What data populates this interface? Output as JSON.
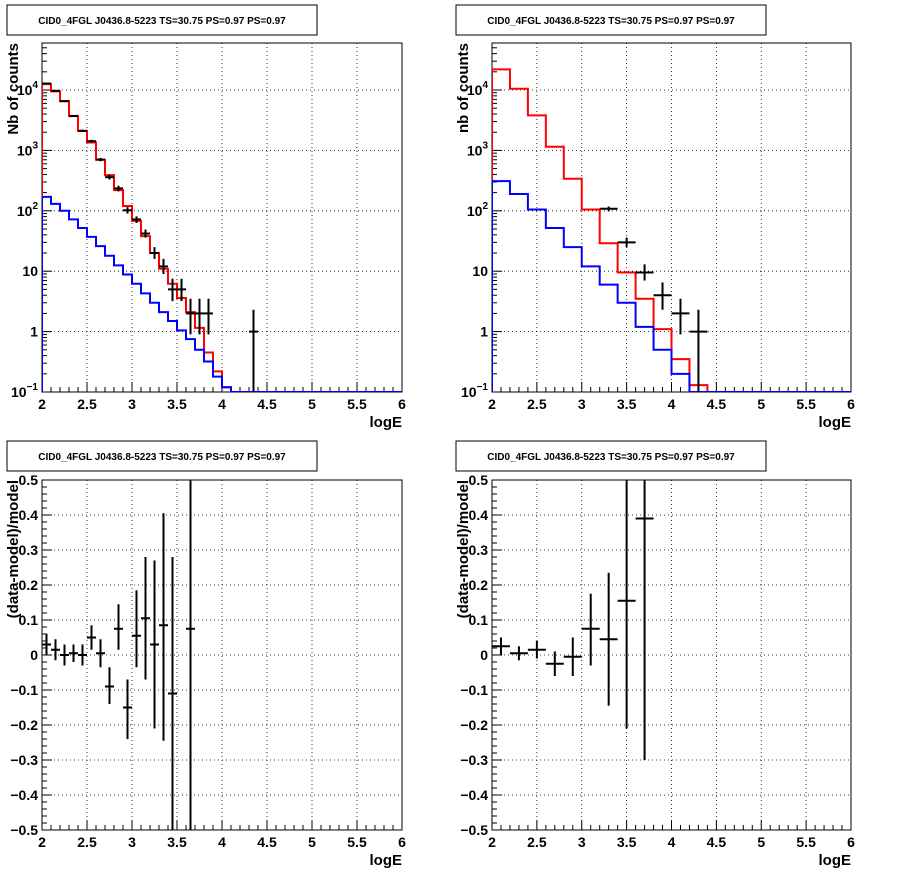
{
  "colors": {
    "data": "#000000",
    "total_model": "#ff0000",
    "component_model": "#0000ff",
    "grid": "#000000"
  },
  "chart_data": [
    {
      "type": "line",
      "title": "CID0_4FGL J0436.8-5223 TS=30.75 PS=0.97 PS=0.97",
      "xlabel": "logE",
      "ylabel": "Nb of counts",
      "xlim": [
        2,
        6
      ],
      "ylim": [
        0.1,
        60000
      ],
      "yscale": "log",
      "grid": true,
      "x_ticks": [
        "2",
        "2.5",
        "3",
        "3.5",
        "4",
        "4.5",
        "5",
        "5.5",
        "6"
      ],
      "y_ticks": [
        {
          "value": 0.1,
          "label": "10",
          "sup": "−1"
        },
        {
          "value": 1,
          "label": "1",
          "sup": ""
        },
        {
          "value": 10,
          "label": "10",
          "sup": ""
        },
        {
          "value": 100,
          "label": "10",
          "sup": "2"
        },
        {
          "value": 1000,
          "label": "10",
          "sup": "3"
        },
        {
          "value": 10000,
          "label": "10",
          "sup": "4"
        }
      ],
      "bin_edges": [
        2.0,
        2.1,
        2.2,
        2.3,
        2.4,
        2.5,
        2.6,
        2.7,
        2.8,
        2.9,
        3.0,
        3.1,
        3.2,
        3.3,
        3.4,
        3.5,
        3.6,
        3.7,
        3.8,
        3.9,
        4.0,
        4.1,
        4.2,
        4.3,
        4.4,
        4.5,
        4.6,
        4.7,
        4.8,
        4.9,
        5.0,
        5.1,
        5.2,
        5.3,
        5.4,
        5.5,
        5.6,
        5.7,
        5.8,
        5.9,
        6.0
      ],
      "series": [
        {
          "role": "total_model",
          "style": "step",
          "values": [
            12500,
            9500,
            6500,
            3700,
            2100,
            1350,
            700,
            390,
            220,
            120,
            68,
            38,
            20,
            11,
            6.2,
            3.6,
            2.1,
            1.15,
            0.45,
            0.22,
            0.12,
            0.1,
            0.1,
            0.1,
            0.1,
            0.1,
            0.1,
            0.1,
            0.1,
            0.1,
            0.1,
            0.1,
            0.1,
            0.1,
            0.1,
            0.1,
            0.1,
            0.1,
            0.1,
            0.1
          ]
        },
        {
          "role": "component_model",
          "style": "step",
          "values": [
            170,
            130,
            100,
            72,
            52,
            37,
            26,
            18,
            12.5,
            8.8,
            6.2,
            4.3,
            3.0,
            2.1,
            1.5,
            1.05,
            0.75,
            0.5,
            0.32,
            0.18,
            0.12,
            0.1,
            0.1,
            0.1,
            0.1,
            0.1,
            0.1,
            0.1,
            0.1,
            0.1,
            0.1,
            0.1,
            0.1,
            0.1,
            0.1,
            0.1,
            0.1,
            0.1,
            0.1,
            0.1
          ]
        },
        {
          "role": "data",
          "style": "errorbar",
          "points": [
            {
              "x": 2.05,
              "y": 12800,
              "lo": 12600,
              "hi": 13000
            },
            {
              "x": 2.15,
              "y": 9700,
              "lo": 9500,
              "hi": 9900
            },
            {
              "x": 2.25,
              "y": 6550,
              "lo": 6400,
              "hi": 6700
            },
            {
              "x": 2.35,
              "y": 3720,
              "lo": 3600,
              "hi": 3850
            },
            {
              "x": 2.45,
              "y": 2110,
              "lo": 2020,
              "hi": 2200
            },
            {
              "x": 2.55,
              "y": 1420,
              "lo": 1350,
              "hi": 1500
            },
            {
              "x": 2.65,
              "y": 705,
              "lo": 660,
              "hi": 750
            },
            {
              "x": 2.75,
              "y": 360,
              "lo": 330,
              "hi": 395
            },
            {
              "x": 2.85,
              "y": 235,
              "lo": 210,
              "hi": 260
            },
            {
              "x": 2.95,
              "y": 102,
              "lo": 90,
              "hi": 115
            },
            {
              "x": 3.05,
              "y": 72,
              "lo": 63,
              "hi": 81
            },
            {
              "x": 3.15,
              "y": 42,
              "lo": 36,
              "hi": 49
            },
            {
              "x": 3.25,
              "y": 20,
              "lo": 16,
              "hi": 25
            },
            {
              "x": 3.35,
              "y": 12,
              "lo": 9,
              "hi": 16
            },
            {
              "x": 3.45,
              "y": 5,
              "lo": 3.2,
              "hi": 7.5
            },
            {
              "x": 3.55,
              "y": 5,
              "lo": 3.2,
              "hi": 7.5
            },
            {
              "x": 3.65,
              "y": 2,
              "lo": 0.9,
              "hi": 3.5
            },
            {
              "x": 3.75,
              "y": 2,
              "lo": 0.9,
              "hi": 3.5
            },
            {
              "x": 3.85,
              "y": 2,
              "lo": 0.9,
              "hi": 3.5
            },
            {
              "x": 4.35,
              "y": 1,
              "lo": 0.1,
              "hi": 2.3
            }
          ]
        }
      ]
    },
    {
      "type": "line",
      "title": "CID0_4FGL J0436.8-5223 TS=30.75 PS=0.97 PS=0.97",
      "xlabel": "logE",
      "ylabel": "nb of counts",
      "xlim": [
        2,
        6
      ],
      "ylim": [
        0.1,
        60000
      ],
      "yscale": "log",
      "grid": true,
      "x_ticks": [
        "2",
        "2.5",
        "3",
        "3.5",
        "4",
        "4.5",
        "5",
        "5.5",
        "6"
      ],
      "y_ticks": [
        {
          "value": 0.1,
          "label": "10",
          "sup": "−1"
        },
        {
          "value": 1,
          "label": "1",
          "sup": ""
        },
        {
          "value": 10,
          "label": "10",
          "sup": ""
        },
        {
          "value": 100,
          "label": "10",
          "sup": "2"
        },
        {
          "value": 1000,
          "label": "10",
          "sup": "3"
        },
        {
          "value": 10000,
          "label": "10",
          "sup": "4"
        }
      ],
      "bin_edges": [
        2.0,
        2.2,
        2.4,
        2.6,
        2.8,
        3.0,
        3.2,
        3.4,
        3.6,
        3.8,
        4.0,
        4.2,
        4.4,
        4.6,
        4.8,
        5.0,
        5.2,
        5.4,
        5.6,
        5.8,
        6.0
      ],
      "series": [
        {
          "role": "total_model",
          "style": "step",
          "values": [
            22000,
            10500,
            3800,
            1150,
            340,
            105,
            29,
            9.5,
            3.5,
            1.1,
            0.35,
            0.13,
            0.1,
            0.1,
            0.1,
            0.1,
            0.1,
            0.1,
            0.1,
            0.1
          ]
        },
        {
          "role": "component_model",
          "style": "step",
          "values": [
            310,
            190,
            105,
            52,
            25,
            12,
            6,
            3,
            1.2,
            0.5,
            0.2,
            0.1,
            0.1,
            0.1,
            0.1,
            0.1,
            0.1,
            0.1,
            0.1,
            0.1
          ]
        },
        {
          "role": "data",
          "style": "errorbar",
          "points": [
            {
              "x": 3.3,
              "y": 108,
              "lo": 98,
              "hi": 118
            },
            {
              "x": 3.5,
              "y": 30,
              "lo": 25,
              "hi": 36
            },
            {
              "x": 3.7,
              "y": 9.5,
              "lo": 7,
              "hi": 13
            },
            {
              "x": 3.9,
              "y": 4,
              "lo": 2.3,
              "hi": 6.5
            },
            {
              "x": 4.1,
              "y": 2,
              "lo": 0.9,
              "hi": 3.5
            },
            {
              "x": 4.3,
              "y": 1,
              "lo": 0.1,
              "hi": 2.3
            }
          ]
        }
      ]
    },
    {
      "type": "scatter",
      "title": "CID0_4FGL J0436.8-5223 TS=30.75 PS=0.97 PS=0.97",
      "xlabel": "logE",
      "ylabel": "(data-model)/model",
      "xlim": [
        2,
        6
      ],
      "ylim": [
        -0.5,
        0.5
      ],
      "grid": true,
      "x_ticks": [
        "2",
        "2.5",
        "3",
        "3.5",
        "4",
        "4.5",
        "5",
        "5.5",
        "6"
      ],
      "y_ticks": [
        {
          "value": -0.5,
          "label": "−0.5",
          "sup": ""
        },
        {
          "value": -0.4,
          "label": "−0.4",
          "sup": ""
        },
        {
          "value": -0.3,
          "label": "−0.3",
          "sup": ""
        },
        {
          "value": -0.2,
          "label": "−0.2",
          "sup": ""
        },
        {
          "value": -0.1,
          "label": "−0.1",
          "sup": ""
        },
        {
          "value": 0,
          "label": "0",
          "sup": ""
        },
        {
          "value": 0.1,
          "label": "0.1",
          "sup": ""
        },
        {
          "value": 0.2,
          "label": "0.2",
          "sup": ""
        },
        {
          "value": 0.3,
          "label": "0.3",
          "sup": ""
        },
        {
          "value": 0.4,
          "label": "0.4",
          "sup": ""
        },
        {
          "value": 0.5,
          "label": "0.5",
          "sup": ""
        }
      ],
      "bin_width": 0.1,
      "series": [
        {
          "role": "data",
          "style": "errorbar",
          "points": [
            {
              "x": 2.05,
              "y": 0.03,
              "lo": 0.0,
              "hi": 0.06
            },
            {
              "x": 2.15,
              "y": 0.015,
              "lo": -0.015,
              "hi": 0.045
            },
            {
              "x": 2.25,
              "y": 0.0,
              "lo": -0.03,
              "hi": 0.03
            },
            {
              "x": 2.35,
              "y": 0.005,
              "lo": -0.02,
              "hi": 0.03
            },
            {
              "x": 2.45,
              "y": 0.0,
              "lo": -0.03,
              "hi": 0.03
            },
            {
              "x": 2.55,
              "y": 0.05,
              "lo": 0.015,
              "hi": 0.085
            },
            {
              "x": 2.65,
              "y": 0.005,
              "lo": -0.035,
              "hi": 0.045
            },
            {
              "x": 2.75,
              "y": -0.09,
              "lo": -0.14,
              "hi": -0.035
            },
            {
              "x": 2.85,
              "y": 0.075,
              "lo": 0.015,
              "hi": 0.145
            },
            {
              "x": 2.95,
              "y": -0.15,
              "lo": -0.24,
              "hi": -0.07
            },
            {
              "x": 3.05,
              "y": 0.055,
              "lo": -0.035,
              "hi": 0.185
            },
            {
              "x": 3.15,
              "y": 0.105,
              "lo": -0.07,
              "hi": 0.28
            },
            {
              "x": 3.25,
              "y": 0.03,
              "lo": -0.21,
              "hi": 0.27
            },
            {
              "x": 3.35,
              "y": 0.085,
              "lo": -0.245,
              "hi": 0.405
            },
            {
              "x": 3.45,
              "y": -0.11,
              "lo": -0.5,
              "hi": 0.28
            },
            {
              "x": 3.65,
              "y": 0.075,
              "lo": -0.5,
              "hi": 0.5
            }
          ]
        }
      ]
    },
    {
      "type": "scatter",
      "title": "CID0_4FGL J0436.8-5223 TS=30.75 PS=0.97 PS=0.97",
      "xlabel": "logE",
      "ylabel": "(data-model)/model",
      "xlim": [
        2,
        6
      ],
      "ylim": [
        -0.5,
        0.5
      ],
      "grid": true,
      "x_ticks": [
        "2",
        "2.5",
        "3",
        "3.5",
        "4",
        "4.5",
        "5",
        "5.5",
        "6"
      ],
      "y_ticks": [
        {
          "value": -0.5,
          "label": "−0.5",
          "sup": ""
        },
        {
          "value": -0.4,
          "label": "−0.4",
          "sup": ""
        },
        {
          "value": -0.3,
          "label": "−0.3",
          "sup": ""
        },
        {
          "value": -0.2,
          "label": "−0.2",
          "sup": ""
        },
        {
          "value": -0.1,
          "label": "−0.1",
          "sup": ""
        },
        {
          "value": 0,
          "label": "0",
          "sup": ""
        },
        {
          "value": 0.1,
          "label": "0.1",
          "sup": ""
        },
        {
          "value": 0.2,
          "label": "0.2",
          "sup": ""
        },
        {
          "value": 0.3,
          "label": "0.3",
          "sup": ""
        },
        {
          "value": 0.4,
          "label": "0.4",
          "sup": ""
        },
        {
          "value": 0.5,
          "label": "0.5",
          "sup": ""
        }
      ],
      "bin_width": 0.2,
      "series": [
        {
          "role": "data",
          "style": "errorbar",
          "points": [
            {
              "x": 2.1,
              "y": 0.025,
              "lo": 0.0,
              "hi": 0.05
            },
            {
              "x": 2.3,
              "y": 0.005,
              "lo": -0.015,
              "hi": 0.025
            },
            {
              "x": 2.5,
              "y": 0.015,
              "lo": -0.01,
              "hi": 0.04
            },
            {
              "x": 2.7,
              "y": -0.025,
              "lo": -0.06,
              "hi": 0.01
            },
            {
              "x": 2.9,
              "y": -0.005,
              "lo": -0.06,
              "hi": 0.05
            },
            {
              "x": 3.1,
              "y": 0.075,
              "lo": -0.03,
              "hi": 0.175
            },
            {
              "x": 3.3,
              "y": 0.045,
              "lo": -0.145,
              "hi": 0.235
            },
            {
              "x": 3.5,
              "y": 0.155,
              "lo": -0.21,
              "hi": 0.5
            },
            {
              "x": 3.7,
              "y": 0.39,
              "lo": -0.3,
              "hi": 0.5
            }
          ]
        }
      ]
    }
  ]
}
